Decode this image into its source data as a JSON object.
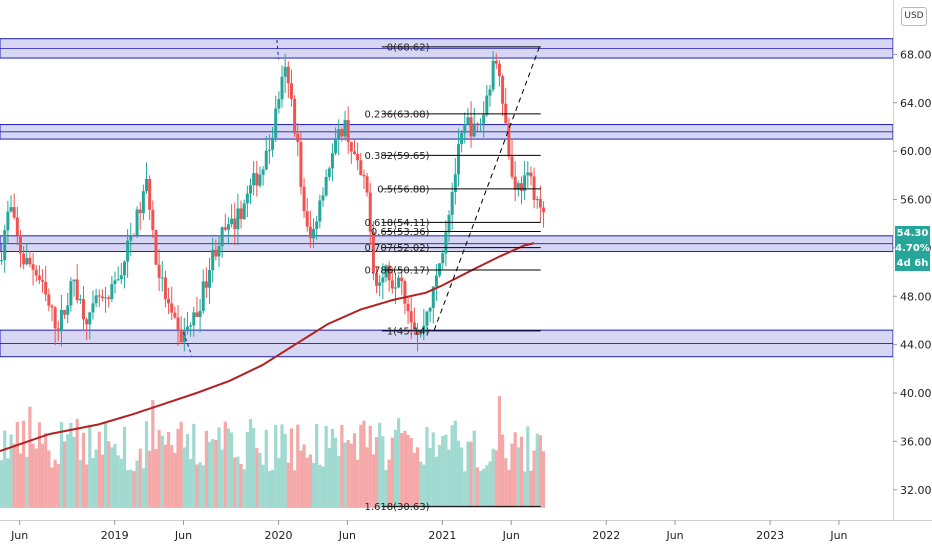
{
  "currency_button": "USD",
  "price_tags": {
    "last_price": "54.30",
    "change_pct": "4.70%",
    "countdown": "4d 6h",
    "color": "#26a69a"
  },
  "colors": {
    "up": "#26a69a",
    "down": "#ef5350",
    "zone_fill": "#c9c9ef",
    "zone_border": "#1d1db8",
    "ma": "#b22222",
    "fib_line": "#000000",
    "trend_line": "#000000",
    "vol_up": "#9fd9cf",
    "vol_down": "#f5a8a8"
  },
  "chart_data": {
    "type": "candlestick",
    "y_axis": {
      "range": [
        29.5,
        72.5
      ],
      "ticks": [
        "68.00",
        "64.00",
        "60.00",
        "56.00",
        "52.00",
        "48.00",
        "44.00",
        "40.00",
        "36.00",
        "32.00"
      ],
      "tick_values": [
        68,
        64,
        60,
        56,
        52,
        48,
        44,
        40,
        36,
        32
      ]
    },
    "x_axis": {
      "range_months": [
        2018.3,
        2023.75
      ],
      "ticks": [
        {
          "label": "Jun",
          "t": 2018.42
        },
        {
          "label": "2019",
          "t": 2019.0
        },
        {
          "label": "Jun",
          "t": 2019.42
        },
        {
          "label": "2020",
          "t": 2020.0
        },
        {
          "label": "Jun",
          "t": 2020.42
        },
        {
          "label": "2021",
          "t": 2021.0
        },
        {
          "label": "Jun",
          "t": 2021.42
        },
        {
          "label": "2022",
          "t": 2022.0
        },
        {
          "label": "Jun",
          "t": 2022.42
        },
        {
          "label": "2023",
          "t": 2023.0
        },
        {
          "label": "Jun",
          "t": 2023.42
        }
      ]
    },
    "zones": [
      {
        "low": 67.7,
        "high": 69.3
      },
      {
        "low": 61.0,
        "high": 62.2
      },
      {
        "low": 51.7,
        "high": 53.0
      },
      {
        "low": 43.0,
        "high": 45.2
      }
    ],
    "fib_levels": [
      {
        "label": "0(68.62)",
        "value": 68.62
      },
      {
        "label": "0.236(63.08)",
        "value": 63.08
      },
      {
        "label": "0.382(59.65)",
        "value": 59.65
      },
      {
        "label": "0.5(56.88)",
        "value": 56.88
      },
      {
        "label": "0.618(54.11)",
        "value": 54.11
      },
      {
        "label": "0.65(53.36)",
        "value": 53.36
      },
      {
        "label": "0.707(52.02)",
        "value": 52.02
      },
      {
        "label": "0.786(50.17)",
        "value": 50.17
      },
      {
        "label": "1(45.14)",
        "value": 45.14
      },
      {
        "label": "1.618(30.63)",
        "value": 30.63
      }
    ],
    "fib_x_range": [
      2020.63,
      2021.6
    ],
    "trend_line": {
      "from": [
        2020.95,
        45.2
      ],
      "to": [
        2021.6,
        68.9
      ]
    },
    "top_dashed": {
      "from": [
        2019.99,
        69.2
      ],
      "to": [
        2020.0,
        67.6
      ]
    },
    "low_dashed": {
      "from": [
        2019.42,
        45.0
      ],
      "to": [
        2019.47,
        43.1
      ]
    },
    "ma_points": [
      [
        2018.3,
        35.2
      ],
      [
        2018.6,
        36.6
      ],
      [
        2018.9,
        37.4
      ],
      [
        2019.1,
        38.2
      ],
      [
        2019.3,
        39.1
      ],
      [
        2019.5,
        40.0
      ],
      [
        2019.7,
        41.0
      ],
      [
        2019.9,
        42.3
      ],
      [
        2020.1,
        44.0
      ],
      [
        2020.3,
        45.7
      ],
      [
        2020.5,
        46.9
      ],
      [
        2020.7,
        47.7
      ],
      [
        2020.9,
        48.3
      ],
      [
        2021.0,
        48.9
      ],
      [
        2021.1,
        49.6
      ],
      [
        2021.2,
        50.3
      ],
      [
        2021.35,
        51.3
      ],
      [
        2021.5,
        52.2
      ],
      [
        2021.56,
        52.4
      ]
    ],
    "price_path": [
      [
        2018.3,
        51.0
      ],
      [
        2018.33,
        53.5
      ],
      [
        2018.36,
        55.5
      ],
      [
        2018.4,
        53.0
      ],
      [
        2018.44,
        51.0
      ],
      [
        2018.5,
        50.5
      ],
      [
        2018.55,
        49.0
      ],
      [
        2018.6,
        47.0
      ],
      [
        2018.65,
        45.5
      ],
      [
        2018.7,
        47.0
      ],
      [
        2018.75,
        49.5
      ],
      [
        2018.8,
        47.0
      ],
      [
        2018.85,
        46.0
      ],
      [
        2018.9,
        48.0
      ],
      [
        2018.95,
        47.0
      ],
      [
        2019.0,
        49.0
      ],
      [
        2019.05,
        50.5
      ],
      [
        2019.1,
        53.0
      ],
      [
        2019.15,
        55.0
      ],
      [
        2019.2,
        57.5
      ],
      [
        2019.25,
        51.0
      ],
      [
        2019.3,
        48.5
      ],
      [
        2019.35,
        46.0
      ],
      [
        2019.4,
        44.5
      ],
      [
        2019.45,
        45.5
      ],
      [
        2019.5,
        46.5
      ],
      [
        2019.55,
        49.0
      ],
      [
        2019.6,
        51.5
      ],
      [
        2019.65,
        53.0
      ],
      [
        2019.7,
        53.5
      ],
      [
        2019.75,
        54.5
      ],
      [
        2019.8,
        56.0
      ],
      [
        2019.85,
        57.5
      ],
      [
        2019.9,
        58.5
      ],
      [
        2019.95,
        60.5
      ],
      [
        2020.0,
        64.5
      ],
      [
        2020.04,
        66.5
      ],
      [
        2020.08,
        64.0
      ],
      [
        2020.12,
        60.0
      ],
      [
        2020.16,
        54.0
      ],
      [
        2020.2,
        52.5
      ],
      [
        2020.25,
        56.0
      ],
      [
        2020.3,
        58.5
      ],
      [
        2020.35,
        60.5
      ],
      [
        2020.4,
        62.5
      ],
      [
        2020.45,
        60.0
      ],
      [
        2020.5,
        58.0
      ],
      [
        2020.55,
        56.0
      ],
      [
        2020.58,
        50.0
      ],
      [
        2020.62,
        49.0
      ],
      [
        2020.66,
        50.5
      ],
      [
        2020.7,
        49.0
      ],
      [
        2020.74,
        50.5
      ],
      [
        2020.78,
        47.5
      ],
      [
        2020.82,
        46.0
      ],
      [
        2020.86,
        44.5
      ],
      [
        2020.9,
        46.5
      ],
      [
        2020.95,
        48.5
      ],
      [
        2021.0,
        52.0
      ],
      [
        2021.05,
        56.0
      ],
      [
        2021.1,
        60.0
      ],
      [
        2021.15,
        62.5
      ],
      [
        2021.2,
        61.5
      ],
      [
        2021.25,
        63.0
      ],
      [
        2021.3,
        66.5
      ],
      [
        2021.34,
        68.0
      ],
      [
        2021.38,
        63.0
      ],
      [
        2021.42,
        58.0
      ],
      [
        2021.46,
        57.0
      ],
      [
        2021.5,
        57.5
      ],
      [
        2021.54,
        57.5
      ],
      [
        2021.58,
        56.0
      ],
      [
        2021.62,
        54.3
      ]
    ],
    "volume_range": [
      30.5,
      41.5
    ]
  }
}
